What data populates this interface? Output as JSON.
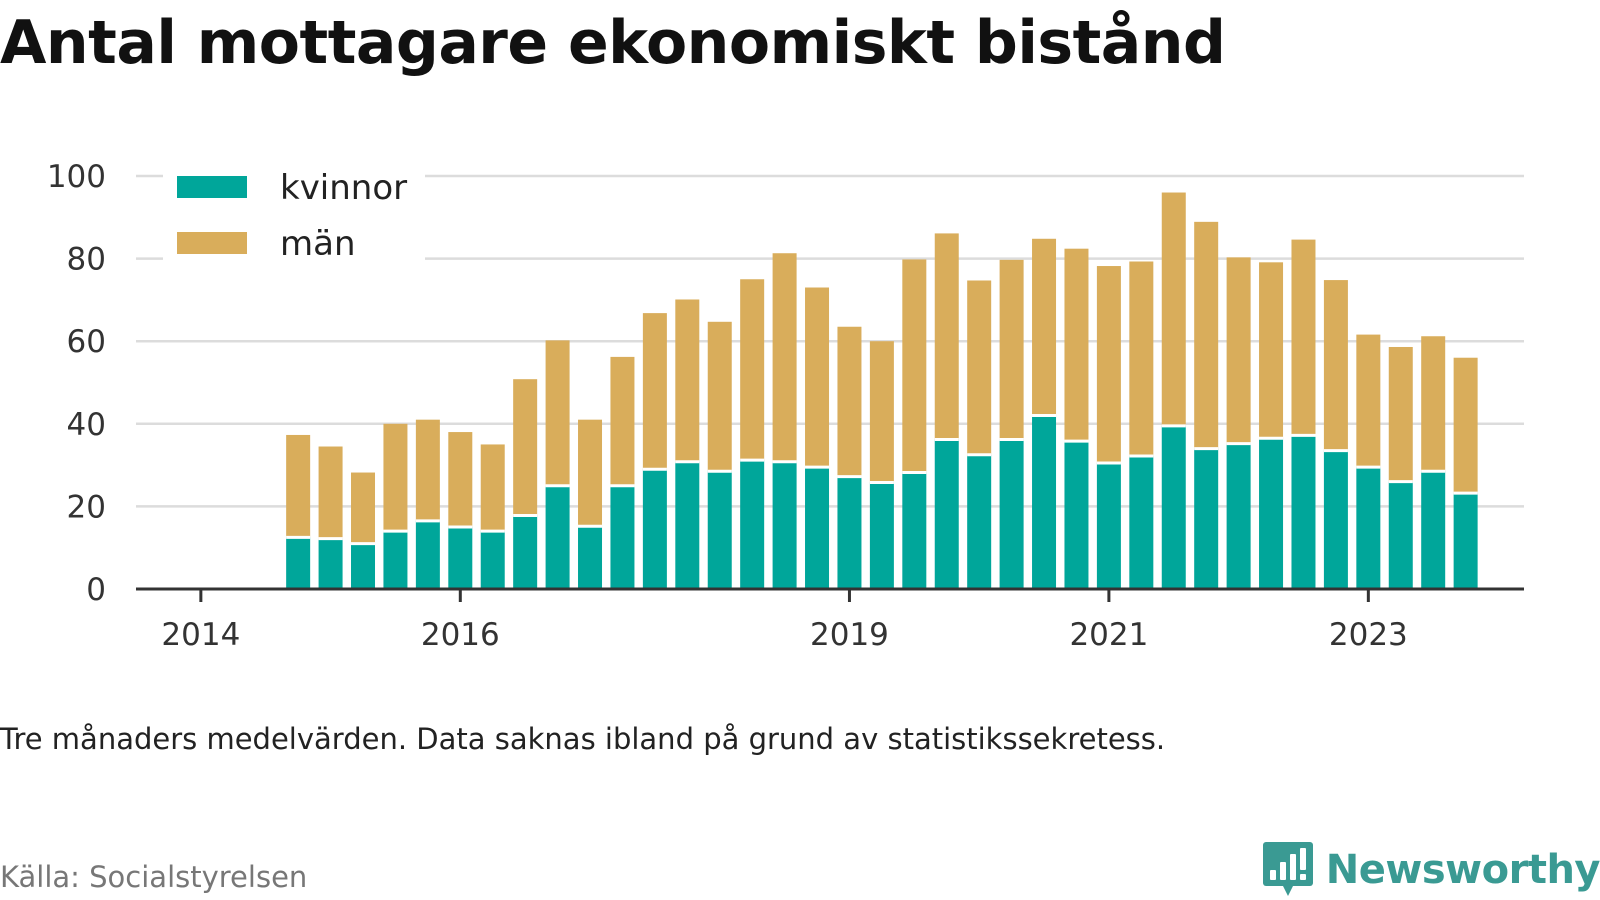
{
  "title": "Antal mottagare ekonomiskt bistånd",
  "note": "Tre månaders medelvärden. Data saknas ibland på grund av statistikssekretess.",
  "source": "Källa: Socialstyrelsen",
  "brand": {
    "name": "Newsworthy",
    "icon": "newsworthy-logo-icon",
    "color": "#3a9a93"
  },
  "chart_data": {
    "type": "bar",
    "stacked": true,
    "title": "Antal mottagare ekonomiskt bistånd",
    "xlabel": "",
    "ylabel": "",
    "ylim": [
      0,
      100
    ],
    "y_ticks": [
      0,
      20,
      40,
      60,
      80,
      100
    ],
    "grid": true,
    "legend_position": "top-left",
    "x_ticks": [
      {
        "label": "2014",
        "x": 2014.0
      },
      {
        "label": "2016",
        "x": 2016.0
      },
      {
        "label": "2019",
        "x": 2019.0
      },
      {
        "label": "2021",
        "x": 2021.0
      },
      {
        "label": "2023",
        "x": 2023.0
      }
    ],
    "x_range": [
      2013.5,
      2024.2
    ],
    "x": [
      2014.75,
      2015.0,
      2015.25,
      2015.5,
      2015.75,
      2016.0,
      2016.25,
      2016.5,
      2016.75,
      2017.0,
      2017.25,
      2017.5,
      2017.75,
      2018.0,
      2018.25,
      2018.5,
      2018.75,
      2019.0,
      2019.25,
      2019.5,
      2019.75,
      2020.0,
      2020.25,
      2020.5,
      2020.75,
      2021.0,
      2021.25,
      2021.5,
      2021.75,
      2022.0,
      2022.25,
      2022.5,
      2022.75,
      2023.0,
      2023.25,
      2023.5,
      2023.75
    ],
    "series": [
      {
        "name": "kvinnor",
        "color": "#00a69a",
        "values": [
          12.5,
          12.2,
          11,
          14,
          16.5,
          15,
          14,
          17.8,
          25,
          15.2,
          25,
          29,
          30.8,
          28.5,
          31.2,
          30.8,
          29.5,
          27.2,
          25.8,
          28.2,
          36.2,
          32.5,
          36.2,
          42,
          35.8,
          30.5,
          32.2,
          39.5,
          34,
          35.2,
          36.5,
          37.2,
          33.5,
          29.5,
          26,
          28.5,
          23.2
        ]
      },
      {
        "name": "män",
        "color": "#d9ad5b",
        "values": [
          24.8,
          22.3,
          17.2,
          26,
          24.5,
          23,
          21,
          33,
          35.2,
          25.8,
          31.2,
          37.8,
          39.3,
          36.2,
          43.8,
          50.5,
          43.5,
          36.3,
          34.2,
          51.6,
          49.9,
          42.2,
          43.5,
          42.8,
          46.6,
          47.7,
          47.1,
          56.5,
          54.9,
          45.1,
          42.6,
          47.4,
          41.3,
          32.1,
          32.6,
          32.7,
          32.8
        ]
      }
    ]
  }
}
